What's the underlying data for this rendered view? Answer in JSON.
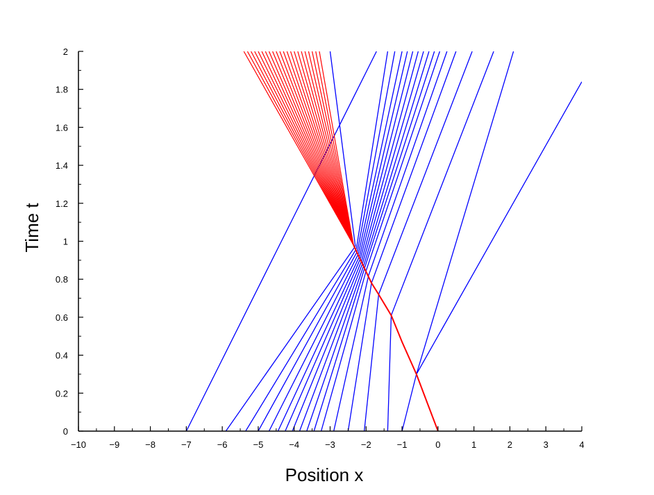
{
  "chart_data": {
    "type": "line",
    "title": "",
    "xlabel": "Position x",
    "ylabel": "Time t",
    "xlim": [
      -10,
      4
    ],
    "ylim": [
      0,
      2
    ],
    "x_ticks": [
      -10,
      -9,
      -8,
      -7,
      -6,
      -5,
      -4,
      -3,
      -2,
      -1,
      0,
      1,
      2,
      3,
      4
    ],
    "x_tick_labels": [
      "−10",
      "−9",
      "−8",
      "−7",
      "−6",
      "−5",
      "−4",
      "−3",
      "−2",
      "−1",
      "0",
      "1",
      "2",
      "3",
      "4"
    ],
    "y_ticks": [
      0,
      0.2,
      0.4,
      0.6,
      0.8,
      1,
      1.2,
      1.4,
      1.6,
      1.8,
      2
    ],
    "y_tick_labels": [
      "0",
      "0.2",
      "0.4",
      "0.6",
      "0.8",
      "1",
      "1.2",
      "1.4",
      "1.6",
      "1.8",
      "2"
    ],
    "grid": false,
    "legend": "none",
    "colors": {
      "characteristics": "#0000ff",
      "shock": "#ff0000",
      "axis": "#000000"
    },
    "series": [
      {
        "kind": "characteristics",
        "color": "#0000ff",
        "lines": [
          {
            "x": [
              -7.0,
              -1.71
            ],
            "t": [
              0,
              2
            ]
          },
          {
            "x": [
              -5.9,
              -2.3
            ],
            "t": [
              0,
              0.974
            ]
          },
          {
            "x": [
              -5.35,
              -2.27
            ],
            "t": [
              0,
              0.96
            ]
          },
          {
            "x": [
              -5.0,
              -2.24
            ],
            "t": [
              0,
              0.948
            ]
          },
          {
            "x": [
              -4.7,
              -2.21
            ],
            "t": [
              0,
              0.935
            ]
          },
          {
            "x": [
              -4.45,
              -2.18
            ],
            "t": [
              0,
              0.923
            ]
          },
          {
            "x": [
              -4.25,
              -2.15
            ],
            "t": [
              0,
              0.912
            ]
          },
          {
            "x": [
              -4.05,
              -2.12
            ],
            "t": [
              0,
              0.9
            ]
          },
          {
            "x": [
              -3.85,
              -2.09
            ],
            "t": [
              0,
              0.888
            ]
          },
          {
            "x": [
              -3.65,
              -2.06
            ],
            "t": [
              0,
              0.876
            ]
          },
          {
            "x": [
              -3.45,
              -2.03
            ],
            "t": [
              0,
              0.865
            ]
          },
          {
            "x": [
              -3.25,
              -1.99
            ],
            "t": [
              0,
              0.85
            ]
          },
          {
            "x": [
              -2.9,
              -1.93
            ],
            "t": [
              0,
              0.82
            ]
          },
          {
            "x": [
              -2.5,
              -1.85
            ],
            "t": [
              0,
              0.78
            ]
          },
          {
            "x": [
              -2.05,
              -1.65
            ],
            "t": [
              0,
              0.72
            ]
          },
          {
            "x": [
              -1.4,
              -1.3
            ],
            "t": [
              0,
              0.61
            ]
          },
          {
            "x": [
              -1.0,
              -0.6
            ],
            "t": [
              0,
              0.3
            ]
          },
          {
            "x": [
              -2.3,
              -3.0
            ],
            "t": [
              0.974,
              2
            ]
          },
          {
            "x": [
              -2.27,
              -1.4
            ],
            "t": [
              0.96,
              2
            ]
          },
          {
            "x": [
              -2.24,
              -1.2
            ],
            "t": [
              0.948,
              2
            ]
          },
          {
            "x": [
              -2.21,
              -1.0
            ],
            "t": [
              0.935,
              2
            ]
          },
          {
            "x": [
              -2.18,
              -0.85
            ],
            "t": [
              0.923,
              2
            ]
          },
          {
            "x": [
              -2.15,
              -0.7
            ],
            "t": [
              0.912,
              2
            ]
          },
          {
            "x": [
              -2.12,
              -0.55
            ],
            "t": [
              0.9,
              2
            ]
          },
          {
            "x": [
              -2.09,
              -0.4
            ],
            "t": [
              0.888,
              2
            ]
          },
          {
            "x": [
              -2.06,
              -0.25
            ],
            "t": [
              0.876,
              2
            ]
          },
          {
            "x": [
              -2.03,
              -0.1
            ],
            "t": [
              0.865,
              2
            ]
          },
          {
            "x": [
              -1.99,
              0.05
            ],
            "t": [
              0.85,
              2
            ]
          },
          {
            "x": [
              -1.93,
              0.25
            ],
            "t": [
              0.82,
              2
            ]
          },
          {
            "x": [
              -1.85,
              0.5
            ],
            "t": [
              0.78,
              2
            ]
          },
          {
            "x": [
              -1.65,
              0.95
            ],
            "t": [
              0.72,
              2
            ]
          },
          {
            "x": [
              -1.3,
              1.55
            ],
            "t": [
              0.61,
              2
            ]
          },
          {
            "x": [
              -0.6,
              2.1
            ],
            "t": [
              0.3,
              2
            ]
          },
          {
            "x": [
              -0.6,
              4.0
            ],
            "t": [
              0.3,
              1.84
            ]
          }
        ]
      },
      {
        "kind": "shock",
        "color": "#ff0000",
        "path": {
          "x": [
            0.0,
            -0.3,
            -0.6,
            -1.0,
            -1.3,
            -1.65,
            -1.85,
            -2.0,
            -2.15,
            -2.35
          ],
          "t": [
            0,
            0.15,
            0.3,
            0.47,
            0.61,
            0.72,
            0.78,
            0.84,
            0.9,
            0.98
          ]
        },
        "fan_origin": {
          "x": -2.35,
          "t": 0.98
        },
        "fan_end_x": [
          -5.4,
          -5.3,
          -5.2,
          -5.1,
          -5.0,
          -4.9,
          -4.8,
          -4.7,
          -4.6,
          -4.5,
          -4.4,
          -4.3,
          -4.2,
          -4.1,
          -4.0,
          -3.9,
          -3.8,
          -3.7,
          -3.6,
          -3.5,
          -3.4,
          -3.3
        ],
        "fan_end_t": 2
      }
    ]
  }
}
